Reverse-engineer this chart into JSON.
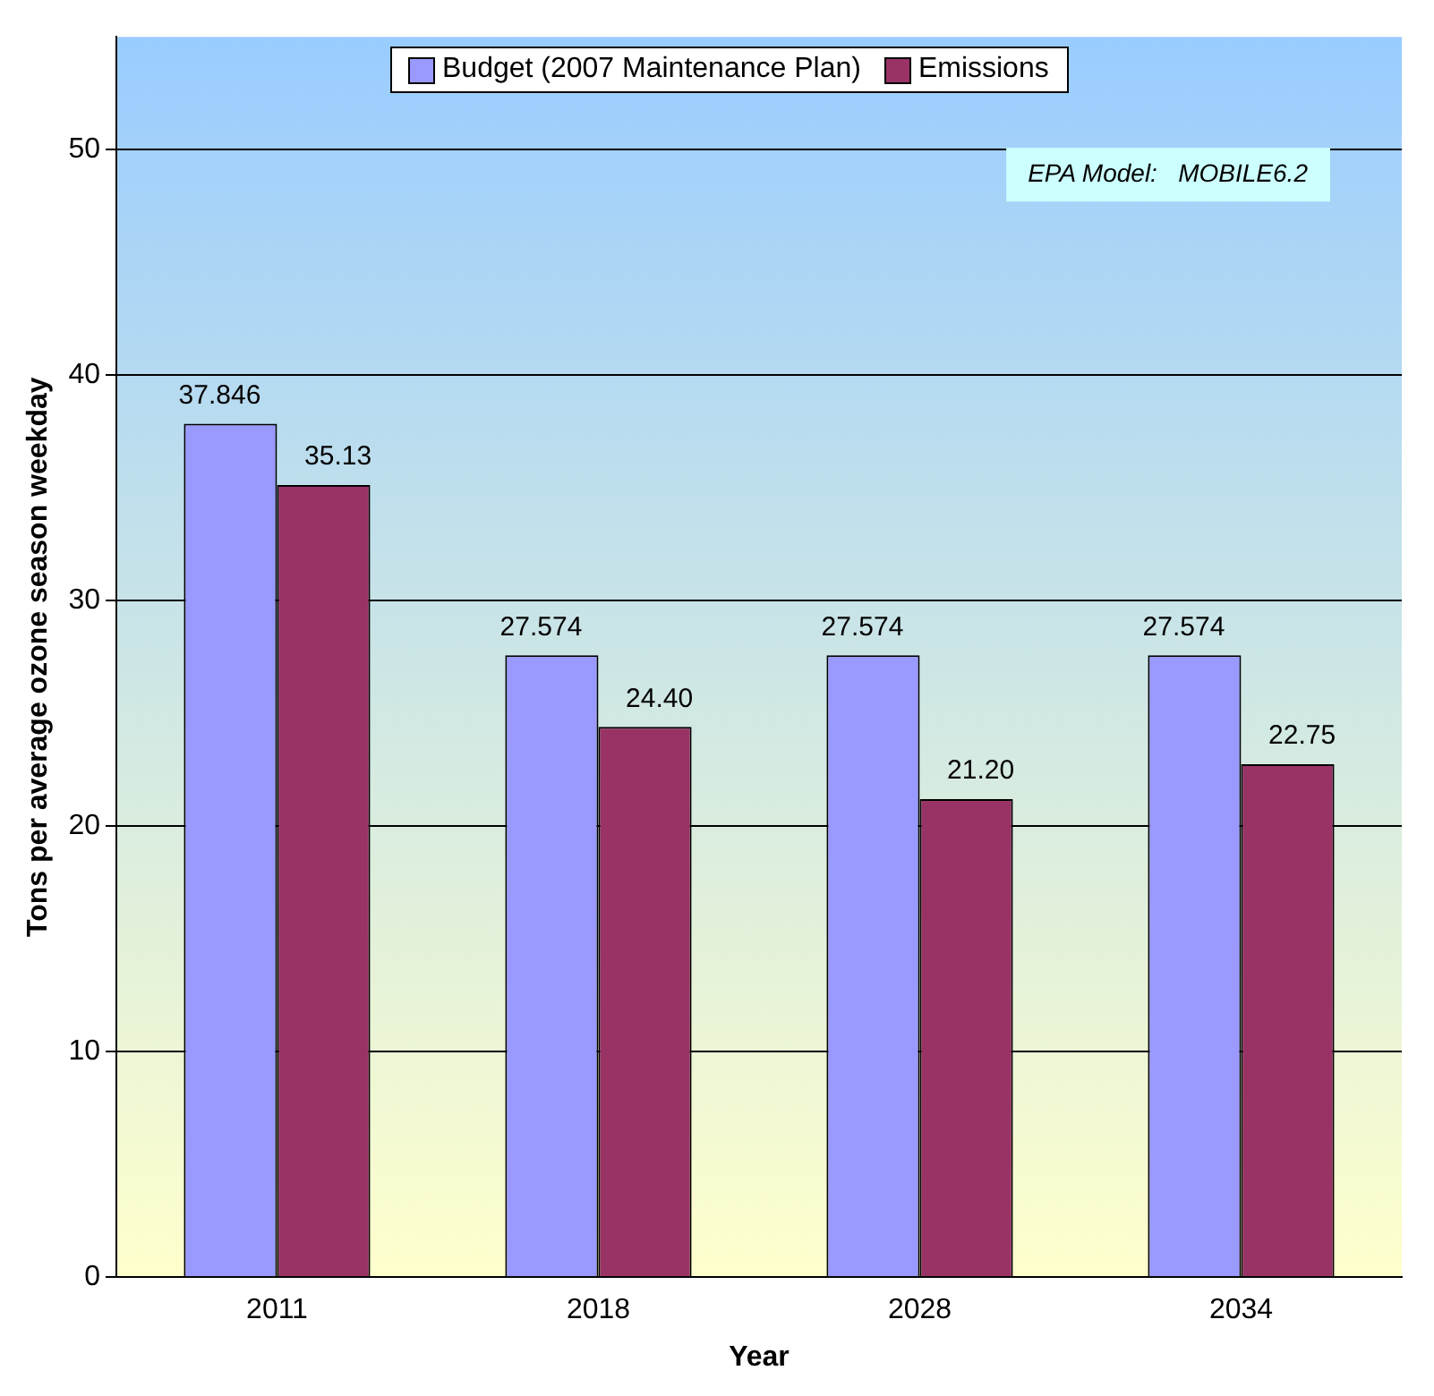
{
  "chart_data": {
    "type": "bar",
    "xlabel": "Year",
    "ylabel": "Tons per average ozone season weekday",
    "categories": [
      "2011",
      "2018",
      "2028",
      "2034"
    ],
    "series": [
      {
        "name": "Budget (2007 Maintenance Plan)",
        "color": "#9999ff",
        "values": [
          37.846,
          27.574,
          27.574,
          27.574
        ],
        "value_labels": [
          "37.846",
          "27.574",
          "27.574",
          "27.574"
        ]
      },
      {
        "name": "Emissions",
        "color": "#993366",
        "values": [
          35.13,
          24.4,
          21.2,
          22.75
        ],
        "value_labels": [
          "35.13",
          "24.40",
          "21.20",
          "22.75"
        ]
      }
    ],
    "ylim": [
      0,
      55
    ],
    "yticks": [
      0,
      10,
      20,
      30,
      40,
      50
    ],
    "grid": "y",
    "legend": "top",
    "annotations": [
      "EPA Model:   MOBILE6.2"
    ]
  }
}
